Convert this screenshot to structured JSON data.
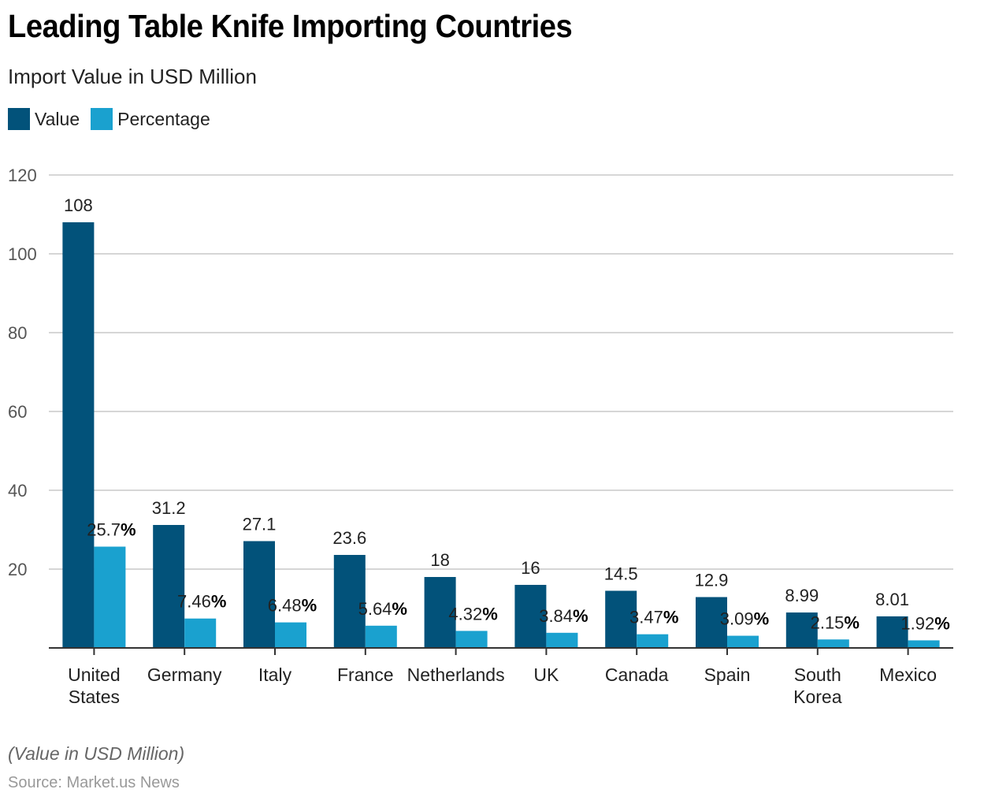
{
  "header": {
    "title": "Leading Table Knife Importing Countries",
    "subtitle": "Import Value in USD Million"
  },
  "legend": [
    {
      "label": "Value",
      "color": "#02527a"
    },
    {
      "label": "Percentage",
      "color": "#1aa1cf"
    }
  ],
  "footer": {
    "note": "(Value in USD Million)",
    "source": "Source: Market.us News"
  },
  "chart_data": {
    "type": "bar",
    "title": "Leading Table Knife Importing Countries",
    "subtitle": "Import Value in USD Million",
    "xlabel": "",
    "ylabel": "",
    "ylim": [
      0,
      120
    ],
    "yticks": [
      20,
      40,
      60,
      80,
      100,
      120
    ],
    "grid": true,
    "legend_position": "top-left",
    "categories": [
      [
        "United",
        "States"
      ],
      [
        "Germany"
      ],
      [
        "Italy"
      ],
      [
        "France"
      ],
      [
        "Netherlands"
      ],
      [
        "UK"
      ],
      [
        "Canada"
      ],
      [
        "Spain"
      ],
      [
        "South",
        "Korea"
      ],
      [
        "Mexico"
      ]
    ],
    "series": [
      {
        "name": "Value",
        "color": "#02527a",
        "values": [
          108,
          31.2,
          27.1,
          23.6,
          18,
          16,
          14.5,
          12.9,
          8.99,
          8.01
        ],
        "labels": [
          "108",
          "31.2",
          "27.1",
          "23.6",
          "18",
          "16",
          "14.5",
          "12.9",
          "8.99",
          "8.01"
        ]
      },
      {
        "name": "Percentage",
        "color": "#1aa1cf",
        "values": [
          25.7,
          7.46,
          6.48,
          5.64,
          4.32,
          3.84,
          3.47,
          3.09,
          2.15,
          1.92
        ],
        "labels": [
          "25.7",
          "7.46",
          "6.48",
          "5.64",
          "4.32",
          "3.84",
          "3.47",
          "3.09",
          "2.15",
          "1.92"
        ],
        "suffix": "%"
      }
    ],
    "footnote": "(Value in USD Million)",
    "source": "Source: Market.us News"
  }
}
